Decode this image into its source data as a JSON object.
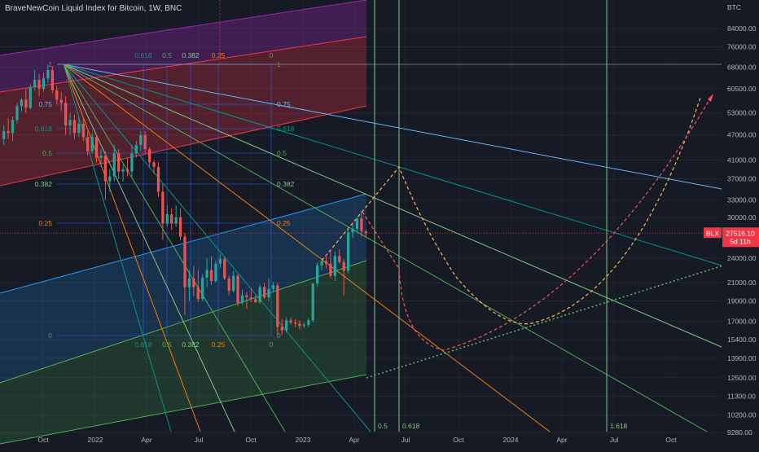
{
  "header": {
    "title": "BraveNewCoin Liquid Index for Bitcoin, 1W, BNC"
  },
  "colors": {
    "background": "#161a25",
    "text": "#b2b5be",
    "up": "#26a69a",
    "down": "#ef5350",
    "price_tag": "#f23645",
    "fib_0": "#787b86",
    "fib_0_25": "#f57c00",
    "fib_0_382": "#81c784",
    "fib_0_5": "#4caf50",
    "fib_0_618": "#009688",
    "fib_0_75": "#64b5f6",
    "fib_1": "#787b86",
    "fan_blue": "#2962ff",
    "channel_top": "#9c27b0",
    "channel_upper": "#f23645",
    "channel_mid": "#2196f3",
    "channel_low": "#4caf50",
    "projection_orange": "#ffb74d",
    "projection_red": "#f7525f",
    "trend_green": "#66bb6a"
  },
  "chart_data": {
    "type": "candlestick",
    "symbol": "BLX",
    "interval": "1W",
    "currency": "BTC",
    "x_axis": {
      "labels": [
        "Oct",
        "2022",
        "Apr",
        "Jul",
        "Oct",
        "2023",
        "Apr",
        "Jul",
        "Oct",
        "2024",
        "Apr",
        "Jul",
        "Oct"
      ]
    },
    "y_axis": {
      "scale": "log",
      "ticks": [
        84000,
        76000,
        68000,
        60500,
        53000,
        47000,
        41000,
        37000,
        33000,
        30000,
        24000,
        21000,
        19000,
        17000,
        15400,
        13900,
        12500,
        11300,
        10200,
        9280
      ],
      "tick_labels": [
        "84000.00",
        "76000.00",
        "68000.00",
        "60500.00",
        "53000.00",
        "47000.00",
        "41000.00",
        "37000.00",
        "33000.00",
        "30000.00",
        "24000.00",
        "21000.00",
        "19000.00",
        "17000.00",
        "15400.00",
        "13900.00",
        "12500.00",
        "11300.00",
        "10200.00",
        "9280.00"
      ]
    },
    "last_price": {
      "symbol_label": "BLX",
      "price_label": "27516.10",
      "countdown_label": "5d 11h",
      "value": 27516.1
    },
    "candles_approx": [
      [
        46000,
        49500,
        44500,
        48000
      ],
      [
        48000,
        51500,
        46000,
        47500
      ],
      [
        47500,
        52000,
        45500,
        51000
      ],
      [
        51000,
        56000,
        50000,
        55000
      ],
      [
        55000,
        57500,
        53500,
        57000
      ],
      [
        57000,
        60500,
        53000,
        54500
      ],
      [
        54500,
        62000,
        54000,
        61000
      ],
      [
        61000,
        67000,
        60000,
        63500
      ],
      [
        63500,
        65500,
        58000,
        60500
      ],
      [
        60500,
        66000,
        59500,
        64000
      ],
      [
        64000,
        69000,
        62500,
        67000
      ],
      [
        67000,
        68500,
        59000,
        60000
      ],
      [
        60000,
        61500,
        55500,
        57000
      ],
      [
        57000,
        59500,
        53500,
        56000
      ],
      [
        56000,
        58000,
        47000,
        49500
      ],
      [
        49500,
        53000,
        47000,
        51000
      ],
      [
        51000,
        52500,
        46000,
        47500
      ],
      [
        47500,
        52000,
        46500,
        50000
      ],
      [
        50000,
        51500,
        45500,
        46500
      ],
      [
        46500,
        48000,
        42000,
        43000
      ],
      [
        43000,
        47500,
        42500,
        46500
      ],
      [
        46500,
        47000,
        40500,
        41500
      ],
      [
        41500,
        43500,
        39500,
        42000
      ],
      [
        42000,
        43000,
        33000,
        36500
      ],
      [
        36500,
        39000,
        34500,
        37500
      ],
      [
        37500,
        44500,
        36500,
        42500
      ],
      [
        42500,
        43500,
        37000,
        38500
      ],
      [
        38500,
        40000,
        36500,
        39000
      ],
      [
        39000,
        41500,
        37500,
        38500
      ],
      [
        38500,
        44500,
        37500,
        42500
      ],
      [
        42500,
        45500,
        41500,
        44500
      ],
      [
        44500,
        48000,
        43000,
        47000
      ],
      [
        47000,
        48000,
        42500,
        43500
      ],
      [
        43500,
        44000,
        39500,
        40500
      ],
      [
        40500,
        41000,
        38000,
        39500
      ],
      [
        39500,
        40500,
        33500,
        34500
      ],
      [
        34500,
        36000,
        26500,
        29000
      ],
      [
        29000,
        32000,
        28500,
        30500
      ],
      [
        30500,
        31500,
        28000,
        29000
      ],
      [
        29000,
        32000,
        28500,
        30000
      ],
      [
        30000,
        31500,
        26500,
        27000
      ],
      [
        27000,
        27500,
        17600,
        20500
      ],
      [
        20500,
        22500,
        19000,
        21500
      ],
      [
        21500,
        23000,
        19500,
        20500
      ],
      [
        20500,
        22500,
        18900,
        19200
      ],
      [
        19200,
        22000,
        19000,
        21600
      ],
      [
        21600,
        24000,
        20500,
        22500
      ],
      [
        22500,
        24300,
        20800,
        21200
      ],
      [
        21200,
        23700,
        21000,
        23300
      ],
      [
        23300,
        24500,
        22800,
        23900
      ],
      [
        23900,
        24200,
        21300,
        21500
      ],
      [
        21500,
        21800,
        19600,
        20100
      ],
      [
        20100,
        22400,
        19900,
        21800
      ],
      [
        21800,
        22000,
        18500,
        18800
      ],
      [
        18800,
        20200,
        18600,
        19600
      ],
      [
        19600,
        20000,
        18200,
        19400
      ],
      [
        19400,
        20400,
        18900,
        19200
      ],
      [
        19200,
        19600,
        18800,
        18900
      ],
      [
        18900,
        20800,
        18700,
        20500
      ],
      [
        20500,
        21000,
        19200,
        19400
      ],
      [
        19400,
        21500,
        19000,
        20300
      ],
      [
        20300,
        21100,
        19900,
        20700
      ],
      [
        20700,
        21000,
        15600,
        16500
      ],
      [
        16500,
        17200,
        15800,
        16200
      ],
      [
        16200,
        17400,
        16000,
        17100
      ],
      [
        17100,
        17400,
        16700,
        16900
      ],
      [
        16900,
        17200,
        16500,
        16800
      ],
      [
        16800,
        17100,
        16300,
        16600
      ],
      [
        16600,
        16900,
        16400,
        16700
      ],
      [
        16700,
        17300,
        16500,
        17100
      ],
      [
        17100,
        21000,
        16900,
        20900
      ],
      [
        20900,
        23500,
        20500,
        23100
      ],
      [
        23100,
        24000,
        22500,
        23600
      ],
      [
        23600,
        24500,
        22700,
        23300
      ],
      [
        23300,
        25200,
        21500,
        21800
      ],
      [
        21800,
        24900,
        21200,
        24300
      ],
      [
        24300,
        25200,
        23300,
        23500
      ],
      [
        23500,
        23900,
        19600,
        22400
      ],
      [
        22400,
        28400,
        22100,
        27600
      ],
      [
        27600,
        28900,
        26800,
        28200
      ],
      [
        28200,
        30000,
        27500,
        29800
      ],
      [
        29800,
        31000,
        27000,
        27800
      ],
      [
        27800,
        28000,
        26900,
        27516
      ]
    ],
    "fib_levels": [
      "0",
      "0.25",
      "0.382",
      "0.5",
      "0.618",
      "0.75",
      "1"
    ],
    "fib_time_zones": [
      "0.5",
      "0.618",
      "1.618"
    ],
    "trend_line_values": {
      "green_dotted_start": 12500,
      "green_dotted_end": 23000
    },
    "projection_paths": [
      "orange-dashed",
      "red-dashed"
    ]
  }
}
